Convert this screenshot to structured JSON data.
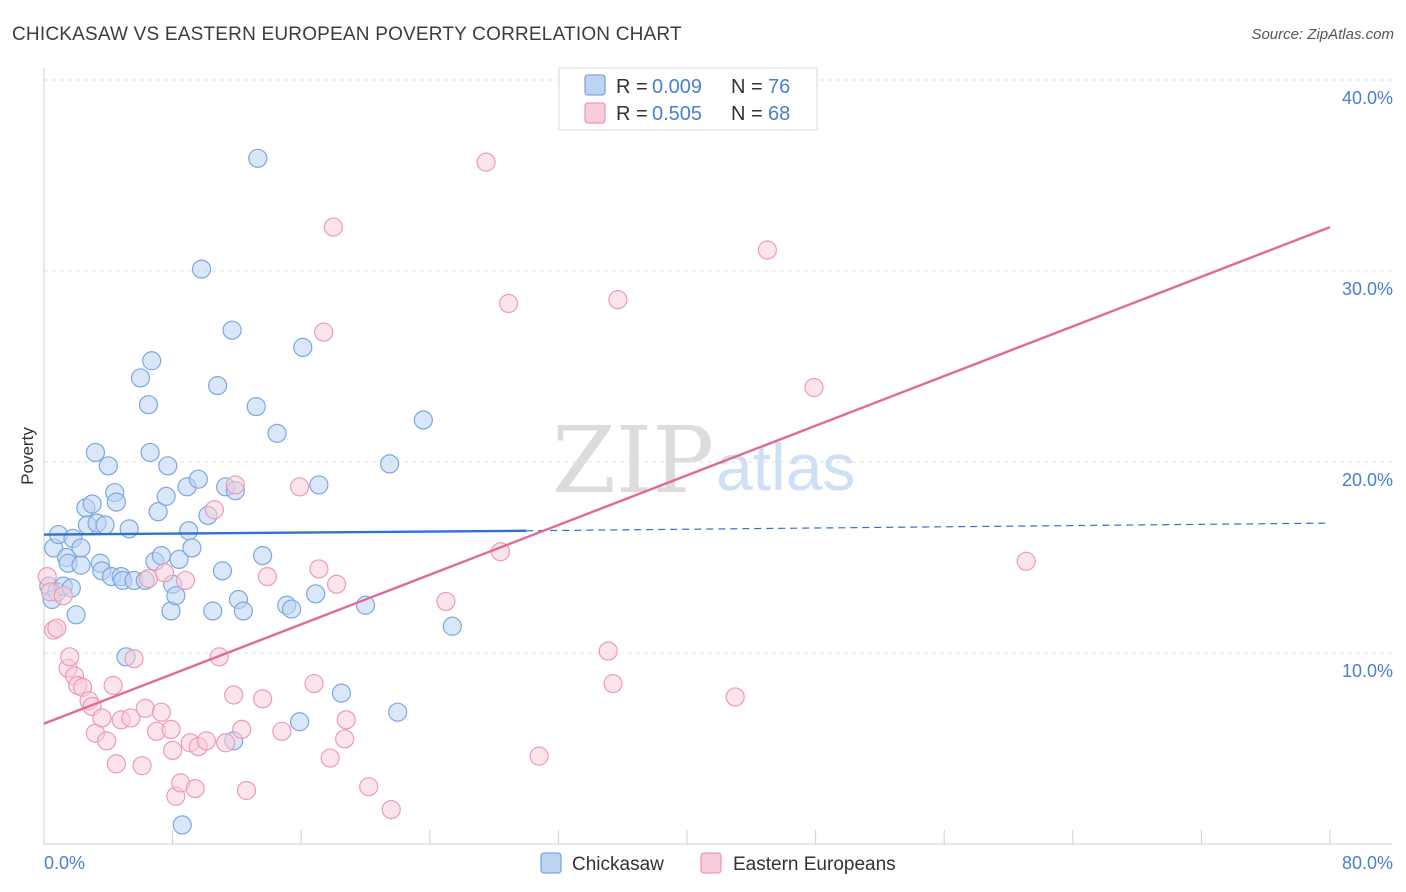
{
  "chart_data": {
    "type": "scatter",
    "title": "CHICKASAW VS EASTERN EUROPEAN POVERTY CORRELATION CHART",
    "source": "Source: ZipAtlas.com",
    "ylabel": "Poverty",
    "xlim": [
      0,
      80
    ],
    "ylim": [
      0,
      40
    ],
    "x_tick_labels": [
      "0.0%",
      "80.0%"
    ],
    "y_ticks": [
      10,
      20,
      30,
      40
    ],
    "y_tick_labels": [
      "10.0%",
      "20.0%",
      "30.0%",
      "40.0%"
    ],
    "watermark": {
      "zip": "ZIP",
      "atlas": "atlas"
    },
    "legend": {
      "r_label": "R =",
      "n_label": "N =",
      "entries": [
        {
          "r": "0.009",
          "n": "76"
        },
        {
          "r": "0.505",
          "n": "68"
        }
      ]
    },
    "series": [
      {
        "name": "Chickasaw",
        "color": "#7ba7e0",
        "fill": "#bcd4f2",
        "line_color": "#2f72cc",
        "trend": {
          "x0": 0,
          "y0": 16.2,
          "x1": 30,
          "y1": 16.4,
          "dash_x1": 80,
          "dash_y1": 16.8
        },
        "points": [
          [
            0.3,
            13.5
          ],
          [
            0.5,
            12.8
          ],
          [
            0.6,
            15.5
          ],
          [
            0.8,
            13.2
          ],
          [
            0.9,
            16.2
          ],
          [
            1.2,
            13.5
          ],
          [
            1.4,
            15.0
          ],
          [
            1.5,
            14.7
          ],
          [
            1.7,
            13.4
          ],
          [
            1.8,
            16.0
          ],
          [
            2.0,
            12.0
          ],
          [
            2.3,
            14.6
          ],
          [
            2.3,
            15.5
          ],
          [
            2.6,
            17.6
          ],
          [
            2.7,
            16.7
          ],
          [
            3.0,
            17.8
          ],
          [
            3.2,
            20.5
          ],
          [
            3.3,
            16.8
          ],
          [
            3.5,
            14.7
          ],
          [
            3.6,
            14.3
          ],
          [
            3.8,
            16.7
          ],
          [
            4.0,
            19.8
          ],
          [
            4.2,
            14.0
          ],
          [
            4.4,
            18.4
          ],
          [
            4.5,
            17.9
          ],
          [
            4.8,
            14.0
          ],
          [
            4.9,
            13.8
          ],
          [
            5.1,
            9.8
          ],
          [
            5.3,
            16.5
          ],
          [
            5.6,
            13.8
          ],
          [
            6.0,
            24.4
          ],
          [
            6.3,
            13.8
          ],
          [
            6.5,
            23.0
          ],
          [
            6.6,
            20.5
          ],
          [
            6.7,
            25.3
          ],
          [
            6.9,
            14.8
          ],
          [
            7.1,
            17.4
          ],
          [
            7.3,
            15.1
          ],
          [
            7.6,
            18.2
          ],
          [
            7.7,
            19.8
          ],
          [
            7.9,
            12.2
          ],
          [
            8.0,
            13.6
          ],
          [
            8.2,
            13.0
          ],
          [
            8.4,
            14.9
          ],
          [
            8.6,
            1.0
          ],
          [
            8.9,
            18.7
          ],
          [
            9.0,
            16.4
          ],
          [
            9.2,
            15.5
          ],
          [
            9.6,
            19.1
          ],
          [
            9.8,
            30.1
          ],
          [
            10.2,
            17.2
          ],
          [
            10.5,
            12.2
          ],
          [
            10.8,
            24.0
          ],
          [
            11.1,
            14.3
          ],
          [
            11.3,
            18.7
          ],
          [
            11.7,
            26.9
          ],
          [
            11.8,
            5.4
          ],
          [
            11.9,
            18.5
          ],
          [
            12.1,
            12.8
          ],
          [
            12.4,
            12.2
          ],
          [
            13.2,
            22.9
          ],
          [
            13.3,
            35.9
          ],
          [
            13.6,
            15.1
          ],
          [
            14.5,
            21.5
          ],
          [
            15.1,
            12.5
          ],
          [
            15.4,
            12.3
          ],
          [
            15.9,
            6.4
          ],
          [
            16.1,
            26.0
          ],
          [
            16.9,
            13.1
          ],
          [
            17.1,
            18.8
          ],
          [
            18.5,
            7.9
          ],
          [
            20.0,
            12.5
          ],
          [
            21.5,
            19.9
          ],
          [
            22.0,
            6.9
          ],
          [
            23.6,
            22.2
          ],
          [
            25.4,
            11.4
          ]
        ]
      },
      {
        "name": "Eastern Europeans",
        "color": "#ef9ab5",
        "fill": "#f8cdd9",
        "line_color": "#e06a94",
        "trend": {
          "x0": 0,
          "y0": 6.3,
          "x1": 80,
          "y1": 32.3
        },
        "points": [
          [
            0.2,
            14.0
          ],
          [
            0.4,
            13.2
          ],
          [
            0.6,
            11.2
          ],
          [
            0.8,
            11.3
          ],
          [
            1.2,
            13.0
          ],
          [
            1.5,
            9.2
          ],
          [
            1.6,
            9.8
          ],
          [
            1.9,
            8.8
          ],
          [
            2.1,
            8.3
          ],
          [
            2.4,
            8.2
          ],
          [
            2.8,
            7.5
          ],
          [
            3.0,
            7.2
          ],
          [
            3.2,
            5.8
          ],
          [
            3.6,
            6.6
          ],
          [
            3.9,
            5.4
          ],
          [
            4.3,
            8.3
          ],
          [
            4.5,
            4.2
          ],
          [
            4.8,
            6.5
          ],
          [
            5.4,
            6.6
          ],
          [
            5.6,
            9.7
          ],
          [
            6.1,
            4.1
          ],
          [
            6.3,
            7.1
          ],
          [
            6.5,
            13.9
          ],
          [
            7.0,
            5.9
          ],
          [
            7.3,
            6.9
          ],
          [
            7.5,
            14.2
          ],
          [
            7.9,
            6.0
          ],
          [
            8.0,
            4.9
          ],
          [
            8.2,
            2.5
          ],
          [
            8.5,
            3.2
          ],
          [
            8.8,
            13.8
          ],
          [
            9.1,
            5.3
          ],
          [
            9.4,
            2.9
          ],
          [
            9.6,
            5.1
          ],
          [
            10.1,
            5.4
          ],
          [
            10.6,
            17.5
          ],
          [
            10.9,
            9.8
          ],
          [
            11.3,
            5.3
          ],
          [
            11.8,
            7.8
          ],
          [
            11.9,
            18.8
          ],
          [
            12.3,
            6.0
          ],
          [
            12.6,
            2.8
          ],
          [
            13.6,
            7.6
          ],
          [
            13.9,
            14.0
          ],
          [
            14.8,
            5.9
          ],
          [
            15.9,
            18.7
          ],
          [
            16.8,
            8.4
          ],
          [
            17.1,
            14.4
          ],
          [
            17.4,
            26.8
          ],
          [
            17.8,
            4.5
          ],
          [
            18.0,
            32.3
          ],
          [
            18.2,
            13.6
          ],
          [
            18.7,
            5.5
          ],
          [
            18.8,
            6.5
          ],
          [
            20.2,
            3.0
          ],
          [
            21.6,
            1.8
          ],
          [
            25.0,
            12.7
          ],
          [
            27.5,
            35.7
          ],
          [
            28.4,
            15.3
          ],
          [
            28.9,
            28.3
          ],
          [
            30.8,
            4.6
          ],
          [
            35.1,
            10.1
          ],
          [
            35.4,
            8.4
          ],
          [
            35.7,
            28.5
          ],
          [
            43.0,
            7.7
          ],
          [
            45.0,
            31.1
          ],
          [
            47.9,
            23.9
          ],
          [
            61.1,
            14.8
          ]
        ]
      }
    ]
  }
}
